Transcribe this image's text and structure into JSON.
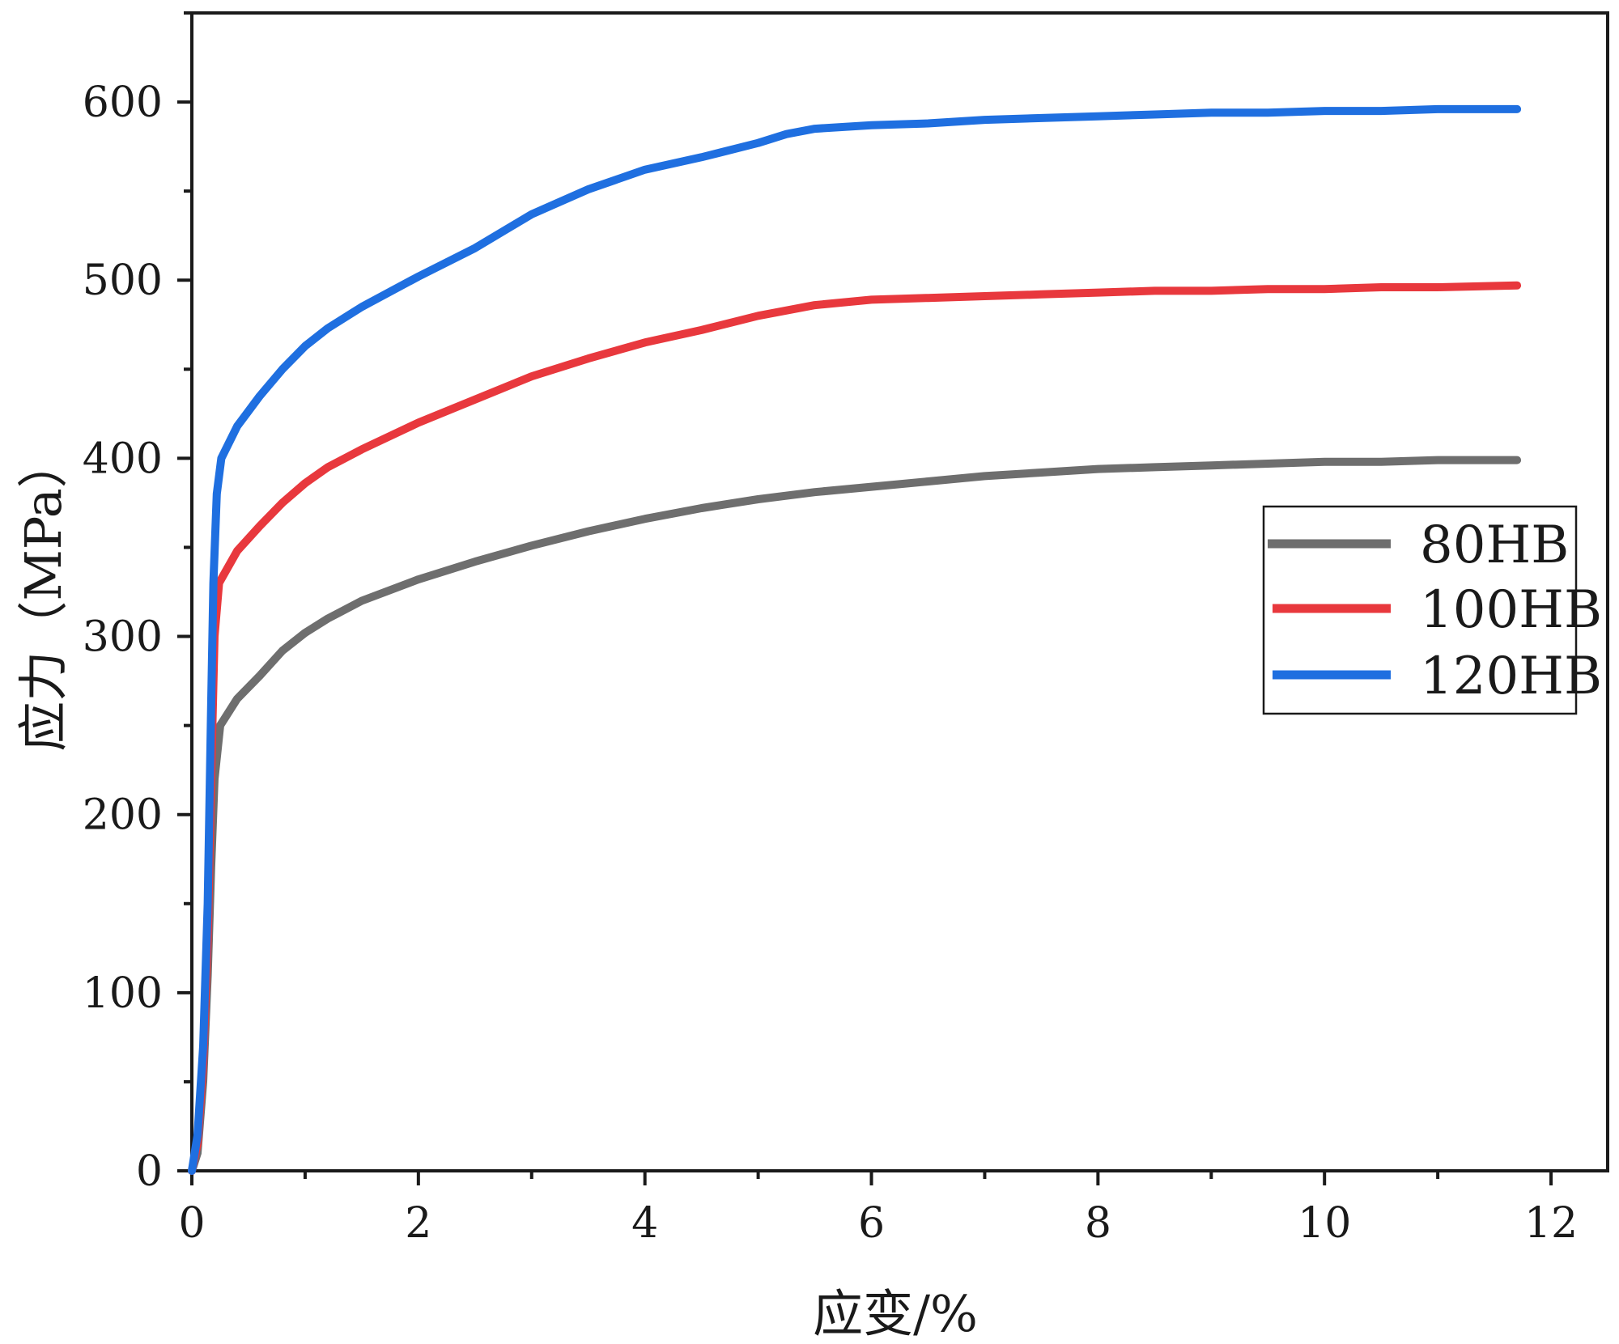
{
  "chart_data": {
    "type": "line",
    "xlabel": "应变/%",
    "ylabel": "应力（MPa）",
    "xlim": [
      0,
      12.5
    ],
    "ylim": [
      0,
      650
    ],
    "x_ticks": [
      0,
      2,
      4,
      6,
      8,
      10,
      12
    ],
    "y_ticks": [
      0,
      100,
      200,
      300,
      400,
      500,
      600
    ],
    "x_minor_step": 1,
    "y_minor_step": 50,
    "grid": false,
    "legend_position": "right, middle",
    "series": [
      {
        "name": "80HB",
        "color": "#6e6e6e",
        "points": [
          [
            0,
            0
          ],
          [
            0.05,
            10
          ],
          [
            0.1,
            50
          ],
          [
            0.14,
            110
          ],
          [
            0.17,
            170
          ],
          [
            0.2,
            220
          ],
          [
            0.25,
            250
          ],
          [
            0.4,
            265
          ],
          [
            0.6,
            278
          ],
          [
            0.8,
            292
          ],
          [
            1.0,
            302
          ],
          [
            1.2,
            310
          ],
          [
            1.5,
            320
          ],
          [
            2.0,
            332
          ],
          [
            2.5,
            342
          ],
          [
            3.0,
            351
          ],
          [
            3.5,
            359
          ],
          [
            4.0,
            366
          ],
          [
            4.5,
            372
          ],
          [
            5.0,
            377
          ],
          [
            5.5,
            381
          ],
          [
            6.0,
            384
          ],
          [
            6.5,
            387
          ],
          [
            7.0,
            390
          ],
          [
            7.5,
            392
          ],
          [
            8.0,
            394
          ],
          [
            8.5,
            395
          ],
          [
            9.0,
            396
          ],
          [
            9.5,
            397
          ],
          [
            10.0,
            398
          ],
          [
            10.5,
            398
          ],
          [
            11.0,
            399
          ],
          [
            11.7,
            399
          ]
        ]
      },
      {
        "name": "100HB",
        "color": "#e8383d",
        "points": [
          [
            0,
            0
          ],
          [
            0.05,
            15
          ],
          [
            0.1,
            60
          ],
          [
            0.14,
            130
          ],
          [
            0.17,
            220
          ],
          [
            0.2,
            300
          ],
          [
            0.24,
            330
          ],
          [
            0.4,
            348
          ],
          [
            0.6,
            362
          ],
          [
            0.8,
            375
          ],
          [
            1.0,
            386
          ],
          [
            1.2,
            395
          ],
          [
            1.5,
            405
          ],
          [
            2.0,
            420
          ],
          [
            2.5,
            433
          ],
          [
            3.0,
            446
          ],
          [
            3.5,
            456
          ],
          [
            4.0,
            465
          ],
          [
            4.5,
            472
          ],
          [
            5.0,
            480
          ],
          [
            5.5,
            486
          ],
          [
            6.0,
            489
          ],
          [
            6.5,
            490
          ],
          [
            7.0,
            491
          ],
          [
            7.5,
            492
          ],
          [
            8.0,
            493
          ],
          [
            8.5,
            494
          ],
          [
            9.0,
            494
          ],
          [
            9.5,
            495
          ],
          [
            10.0,
            495
          ],
          [
            10.5,
            496
          ],
          [
            11.0,
            496
          ],
          [
            11.7,
            497
          ]
        ]
      },
      {
        "name": "120HB",
        "color": "#1f6fe0",
        "points": [
          [
            0,
            0
          ],
          [
            0.05,
            20
          ],
          [
            0.1,
            70
          ],
          [
            0.14,
            150
          ],
          [
            0.17,
            260
          ],
          [
            0.19,
            330
          ],
          [
            0.22,
            380
          ],
          [
            0.26,
            400
          ],
          [
            0.4,
            418
          ],
          [
            0.6,
            435
          ],
          [
            0.8,
            450
          ],
          [
            1.0,
            463
          ],
          [
            1.2,
            473
          ],
          [
            1.5,
            485
          ],
          [
            2.0,
            502
          ],
          [
            2.5,
            518
          ],
          [
            3.0,
            537
          ],
          [
            3.5,
            551
          ],
          [
            4.0,
            562
          ],
          [
            4.5,
            569
          ],
          [
            5.0,
            577
          ],
          [
            5.25,
            582
          ],
          [
            5.5,
            585
          ],
          [
            6.0,
            587
          ],
          [
            6.5,
            588
          ],
          [
            7.0,
            590
          ],
          [
            7.5,
            591
          ],
          [
            8.0,
            592
          ],
          [
            8.5,
            593
          ],
          [
            9.0,
            594
          ],
          [
            9.5,
            594
          ],
          [
            10.0,
            595
          ],
          [
            10.5,
            595
          ],
          [
            11.0,
            596
          ],
          [
            11.7,
            596
          ]
        ]
      }
    ]
  }
}
